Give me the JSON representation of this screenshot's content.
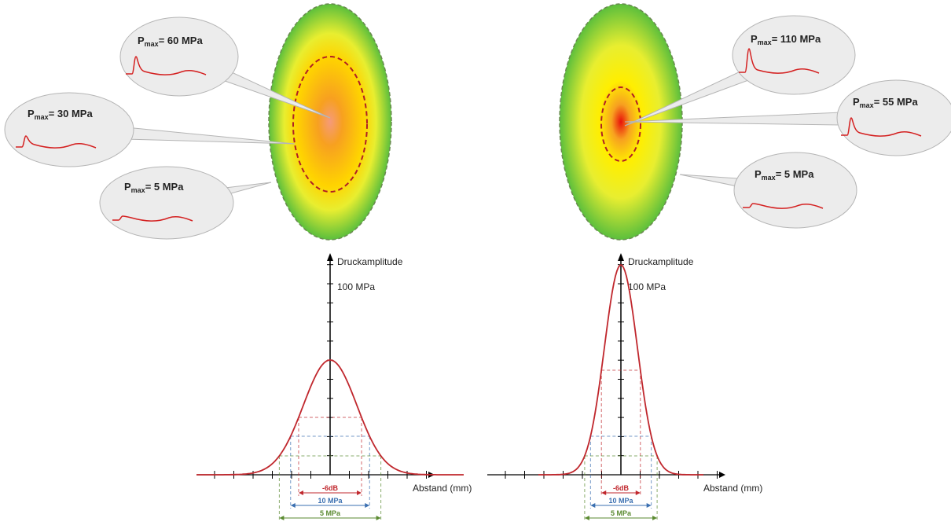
{
  "left": {
    "callouts": [
      {
        "symbol": "P",
        "subscript": "max",
        "value": "= 60 MPa"
      },
      {
        "symbol": "P",
        "subscript": "max",
        "value": "= 30 MPa"
      },
      {
        "symbol": "P",
        "subscript": "max",
        "value": "= 5 MPa"
      }
    ],
    "axis": {
      "y_label": "Druckamplitude",
      "y_tick": "100 MPa",
      "x_label": "Abstand (mm)"
    },
    "widths": [
      "-6dB",
      "10 MPa",
      "5 MPa"
    ]
  },
  "right": {
    "callouts": [
      {
        "symbol": "P",
        "subscript": "max",
        "value": "= 110 MPa"
      },
      {
        "symbol": "P",
        "subscript": "max",
        "value": "= 55 MPa"
      },
      {
        "symbol": "P",
        "subscript": "max",
        "value": "= 5 MPa"
      }
    ],
    "axis": {
      "y_label": "Druckamplitude",
      "y_tick": "100 MPa",
      "x_label": "Abstand (mm)"
    },
    "widths": [
      "-6dB",
      "10 MPa",
      "5 MPa"
    ]
  }
}
